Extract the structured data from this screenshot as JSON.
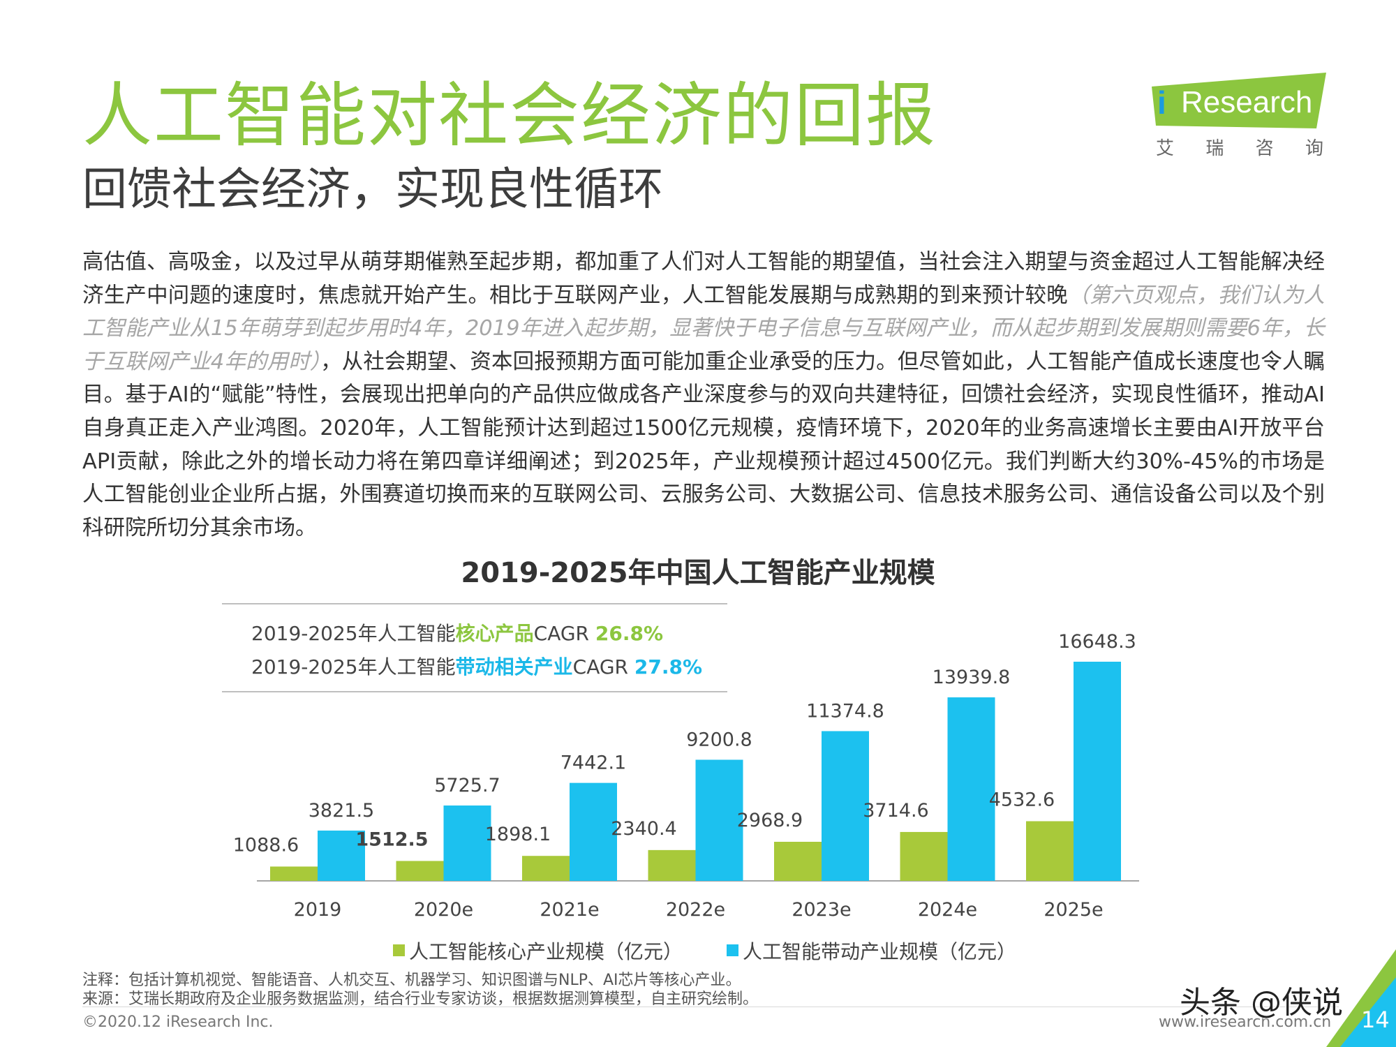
{
  "header": {
    "title": "人工智能对社会经济的回报",
    "subtitle": "回馈社会经济，实现良性循环"
  },
  "logo": {
    "brand_i": "i",
    "brand_text": "Research",
    "cn": [
      "艾",
      "瑞",
      "咨",
      "询"
    ]
  },
  "body": {
    "part1": "高估值、高吸金，以及过早从萌芽期催熟至起步期，都加重了人们对人工智能的期望值，当社会注入期望与资金超过人工智能解决经济生产中问题的速度时，焦虑就开始产生。相比于互联网产业，人工智能发展期与成熟期的到来预计较晚",
    "note": "（第六页观点，我们认为人工智能产业从15年萌芽到起步用时4年，2019年进入起步期，显著快于电子信息与互联网产业，而从起步期到发展期则需要6年，长于互联网产业4年的用时）",
    "part2": "，从社会期望、资本回报预期方面可能加重企业承受的压力。但尽管如此，人工智能产值成长速度也令人瞩目。基于AI的“赋能”特性，会展现出把单向的产品供应做成各产业深度参与的双向共建特征，回馈社会经济，实现良性循环，推动AI自身真正走入产业鸿图。2020年，人工智能预计达到超过1500亿元规模，疫情环境下，2020年的业务高速增长主要由AI开放平台API贡献，除此之外的增长动力将在第四章详细阐述；到2025年，产业规模预计超过4500亿元。我们判断大约30%-45%的市场是人工智能创业企业所占据，外围赛道切换而来的互联网公司、云服务公司、大数据公司、信息技术服务公司、通信设备公司以及个别科研院所切分其余市场。"
  },
  "cagr": {
    "line1_prefix": "2019-2025年人工智能",
    "line1_highlight": "核心产品",
    "line1_cagr": "CAGR ",
    "line1_value": "26.8%",
    "line2_prefix": "2019-2025年人工智能",
    "line2_highlight": "带动相关产业",
    "line2_cagr": "CAGR ",
    "line2_value": "27.8%"
  },
  "chart_data": {
    "type": "bar",
    "title": "2019-2025年中国人工智能产业规模",
    "categories": [
      "2019",
      "2020e",
      "2021e",
      "2022e",
      "2023e",
      "2024e",
      "2025e"
    ],
    "series": [
      {
        "name": "人工智能核心产业规模（亿元）",
        "values": [
          1088.6,
          1512.5,
          1898.1,
          2340.4,
          2968.9,
          3714.6,
          4532.6
        ],
        "labels": [
          "1088.6",
          "1512.5",
          "1898.1",
          "2340.4",
          "2968.9",
          "3714.6",
          "4532.6"
        ],
        "color": "#a8c93a"
      },
      {
        "name": "人工智能带动产业规模（亿元）",
        "values": [
          3821.5,
          5725.7,
          7442.1,
          9200.8,
          11374.8,
          13939.8,
          16648.3
        ],
        "labels": [
          "3821.5",
          "5725.7",
          "7442.1",
          "9200.8",
          "11374.8",
          "13939.8",
          "16648.3"
        ],
        "color": "#1cc1ef"
      }
    ],
    "ylim": [
      0,
      16648.3
    ],
    "grid": false,
    "legend_position": "bottom"
  },
  "footer": {
    "note": "注释：包括计算机视觉、智能语音、人机交互、机器学习、知识图谱与NLP、AI芯片等核心产业。",
    "source": "来源：艾瑞长期政府及企业服务数据监测，结合行业专家访谈，根据数据测算模型，自主研究绘制。",
    "copyright": "©2020.12 iResearch Inc.",
    "website": "www.iresearch.com.cn",
    "page": "14",
    "watermark": "头条 @侠说"
  }
}
